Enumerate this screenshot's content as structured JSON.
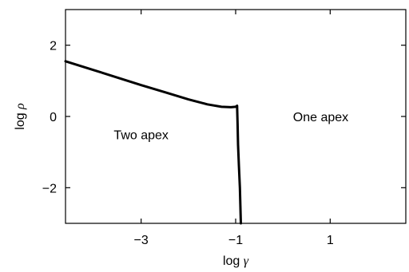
{
  "chart_data": {
    "type": "line",
    "title": "",
    "xlabel": {
      "prefix": "log ",
      "symbol": "γ"
    },
    "ylabel": {
      "prefix": "log ",
      "symbol": "ρ"
    },
    "xlim": [
      -4.6,
      2.6
    ],
    "ylim": [
      -3.0,
      3.0
    ],
    "x_ticks": [
      {
        "value": -3,
        "label": "−3"
      },
      {
        "value": -1,
        "label": "−1"
      },
      {
        "value": 1,
        "label": "1"
      }
    ],
    "y_ticks": [
      {
        "value": 2,
        "label": "2"
      },
      {
        "value": 0,
        "label": "0"
      },
      {
        "value": -2,
        "label": "−2"
      }
    ],
    "grid": false,
    "series": [
      {
        "color": "#000000",
        "x": [
          -4.6,
          -4.0,
          -3.5,
          -3.0,
          -2.5,
          -2.0,
          -1.6,
          -1.3,
          -1.1,
          -1.0,
          -0.97,
          -0.96,
          -0.95,
          -0.93,
          -0.91,
          -0.9,
          -0.89
        ],
        "y": [
          1.55,
          1.3,
          1.09,
          0.88,
          0.68,
          0.48,
          0.34,
          0.27,
          0.26,
          0.27,
          0.3,
          -0.2,
          -0.8,
          -1.4,
          -2.0,
          -2.5,
          -3.0
        ]
      }
    ],
    "annotations": [
      {
        "text": "Two apex",
        "x": -3.0,
        "y": -0.5
      },
      {
        "text": "One apex",
        "x": 0.8,
        "y": 0.0
      }
    ]
  }
}
